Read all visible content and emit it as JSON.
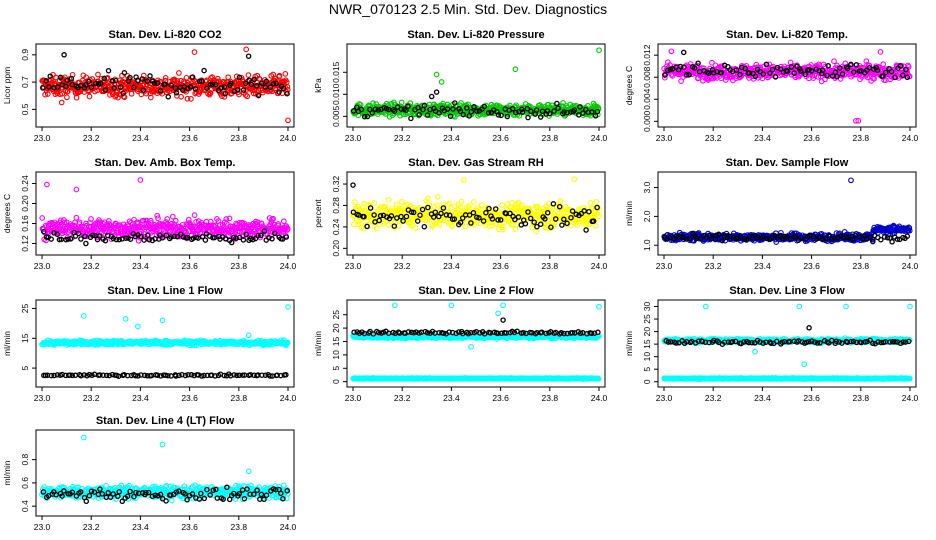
{
  "title": "NWR_070123  2.5 Min. Std. Dev. Diagnostics",
  "chart_data": [
    {
      "type": "scatter",
      "title": "Stan. Dev. Li-820 CO2",
      "xlabel": "",
      "ylabel": "Licor ppm",
      "xlim": [
        23.0,
        24.0
      ],
      "xticks": [
        "23.0",
        "23.2",
        "23.4",
        "23.6",
        "23.8",
        "24.0"
      ],
      "ylim": [
        0.4,
        0.95
      ],
      "yticks": [
        "0.5",
        "0.7",
        "0.9"
      ],
      "ytick_values": [
        0.5,
        0.7,
        0.9
      ],
      "series": [
        {
          "name": "main",
          "color": "#ff0000",
          "mean": 0.67,
          "spread": 0.07,
          "n": 520,
          "outliers": [
            [
              23.83,
              0.94
            ],
            [
              23.62,
              0.92
            ],
            [
              24.0,
              0.42
            ],
            [
              23.08,
              0.55
            ]
          ]
        },
        {
          "name": "reference",
          "color": "#000000",
          "mean": 0.68,
          "spread": 0.08,
          "n": 90,
          "outliers": [
            [
              23.09,
              0.9
            ],
            [
              23.84,
              0.89
            ]
          ]
        }
      ]
    },
    {
      "type": "scatter",
      "title": "Stan. Dev. Li-820 Pressure",
      "xlabel": "",
      "ylabel": "kPa",
      "xlim": [
        23.0,
        24.0
      ],
      "xticks": [
        "23.0",
        "23.2",
        "23.4",
        "23.6",
        "23.8",
        "24.0"
      ],
      "ylim": [
        0.0035,
        0.0205
      ],
      "yticks": [
        "0.005",
        "0.010",
        "0.015"
      ],
      "ytick_values": [
        0.005,
        0.01,
        0.015
      ],
      "series": [
        {
          "name": "main",
          "color": "#00cc00",
          "mean": 0.0065,
          "spread": 0.0013,
          "n": 520,
          "outliers": [
            [
              23.34,
              0.0145
            ],
            [
              23.66,
              0.0157
            ],
            [
              24.0,
              0.02
            ],
            [
              23.36,
              0.0128
            ]
          ]
        },
        {
          "name": "reference",
          "color": "#000000",
          "mean": 0.0062,
          "spread": 0.0012,
          "n": 90,
          "outliers": [
            [
              23.34,
              0.0105
            ],
            [
              23.32,
              0.0095
            ]
          ]
        }
      ]
    },
    {
      "type": "scatter",
      "title": "Stan. Dev. Li-820 Temp.",
      "xlabel": "",
      "ylabel": "degrees C",
      "xlim": [
        23.0,
        24.0
      ],
      "xticks": [
        "23.0",
        "23.2",
        "23.4",
        "23.6",
        "23.8",
        "24.0"
      ],
      "ylim": [
        -0.0003,
        0.0133
      ],
      "yticks": [
        "0.000",
        "0.004",
        "0.008",
        "0.012"
      ],
      "ytick_values": [
        0.0,
        0.004,
        0.008,
        0.012
      ],
      "series": [
        {
          "name": "main",
          "color": "#ff00ff",
          "mean": 0.009,
          "spread": 0.0013,
          "n": 520,
          "outliers": [
            [
              23.78,
              0.0001
            ],
            [
              23.79,
              0.0001
            ],
            [
              23.03,
              0.0127
            ],
            [
              23.88,
              0.0126
            ]
          ]
        },
        {
          "name": "reference",
          "color": "#000000",
          "mean": 0.0092,
          "spread": 0.0013,
          "n": 90,
          "outliers": [
            [
              23.08,
              0.0125
            ]
          ]
        }
      ]
    },
    {
      "type": "scatter",
      "title": "Stan. Dev. Amb. Box Temp.",
      "xlabel": "",
      "ylabel": "degrees C",
      "xlim": [
        23.0,
        24.0
      ],
      "xticks": [
        "23.0",
        "23.2",
        "23.4",
        "23.6",
        "23.8",
        "24.0"
      ],
      "ylim": [
        0.105,
        0.255
      ],
      "yticks": [
        "0.12",
        "0.16",
        "0.20",
        "0.24"
      ],
      "ytick_values": [
        0.12,
        0.16,
        0.2,
        0.24
      ],
      "series": [
        {
          "name": "main",
          "color": "#ff00ff",
          "mean": 0.15,
          "spread": 0.018,
          "n": 520,
          "outliers": [
            [
              23.4,
              0.247
            ],
            [
              23.02,
              0.238
            ],
            [
              23.14,
              0.228
            ]
          ]
        },
        {
          "name": "reference",
          "color": "#000000",
          "mean": 0.132,
          "spread": 0.01,
          "n": 90,
          "outliers": []
        }
      ]
    },
    {
      "type": "scatter",
      "title": "Stan. Dev. Gas Stream RH",
      "xlabel": "",
      "ylabel": "percent",
      "xlim": [
        23.0,
        24.0
      ],
      "xticks": [
        "23.0",
        "23.2",
        "23.4",
        "23.6",
        "23.8",
        "24.0"
      ],
      "ylim": [
        0.195,
        0.335
      ],
      "yticks": [
        "0.20",
        "0.24",
        "0.28",
        "0.32"
      ],
      "ytick_values": [
        0.2,
        0.24,
        0.28,
        0.32
      ],
      "series": [
        {
          "name": "main",
          "color": "#ffff00",
          "mean": 0.262,
          "spread": 0.022,
          "n": 520,
          "outliers": [
            [
              23.45,
              0.328
            ],
            [
              23.9,
              0.329
            ]
          ]
        },
        {
          "name": "reference",
          "color": "#000000",
          "mean": 0.258,
          "spread": 0.02,
          "n": 90,
          "outliers": [
            [
              23.0,
              0.318
            ]
          ]
        }
      ]
    },
    {
      "type": "scatter",
      "title": "Stan. Dev. Sample Flow",
      "xlabel": "",
      "ylabel": "ml/min",
      "xlim": [
        23.0,
        24.0
      ],
      "xticks": [
        "23.0",
        "23.2",
        "23.4",
        "23.6",
        "23.8",
        "24.0"
      ],
      "ylim": [
        0.8,
        3.4
      ],
      "yticks": [
        "1.0",
        "2.0",
        "3.0"
      ],
      "ytick_values": [
        1.0,
        2.0,
        3.0
      ],
      "series": [
        {
          "name": "main",
          "color": "#0000cc",
          "mean": 1.28,
          "spread": 0.12,
          "n": 520,
          "step_after": 23.85,
          "step_mean": 1.55,
          "outliers": [
            [
              23.76,
              3.25
            ]
          ]
        },
        {
          "name": "reference",
          "color": "#000000",
          "mean": 1.25,
          "spread": 0.1,
          "n": 90,
          "outliers": []
        }
      ]
    },
    {
      "type": "scatter",
      "title": "Stan. Dev. Line 1 Flow",
      "xlabel": "",
      "ylabel": "ml/min",
      "xlim": [
        23.0,
        24.0
      ],
      "xticks": [
        "23.0",
        "23.2",
        "23.4",
        "23.6",
        "23.8",
        "24.0"
      ],
      "ylim": [
        0.0,
        26.5
      ],
      "yticks": [
        "5",
        "15",
        "25"
      ],
      "ytick_values": [
        5,
        15,
        25
      ],
      "series": [
        {
          "name": "main",
          "color": "#00ffff",
          "mean": 13.5,
          "spread": 0.7,
          "n": 520,
          "outliers": [
            [
              24.0,
              25.5
            ],
            [
              23.17,
              22.5
            ],
            [
              23.34,
              21.5
            ],
            [
              23.49,
              21.0
            ],
            [
              23.39,
              19.0
            ],
            [
              23.84,
              16.0
            ]
          ]
        },
        {
          "name": "reference",
          "color": "#000000",
          "mean": 2.6,
          "spread": 0.25,
          "n": 90,
          "outliers": []
        }
      ]
    },
    {
      "type": "scatter",
      "title": "Stan. Dev. Line 2 Flow",
      "xlabel": "",
      "ylabel": "ml/min",
      "xlim": [
        23.0,
        24.0
      ],
      "xticks": [
        "23.0",
        "23.2",
        "23.4",
        "23.6",
        "23.8",
        "24.0"
      ],
      "ylim": [
        -0.5,
        29.0
      ],
      "yticks": [
        "0",
        "5",
        "10",
        "15",
        "20",
        "25"
      ],
      "ytick_values": [
        0,
        5,
        10,
        15,
        20,
        25
      ],
      "series": [
        {
          "name": "main",
          "color": "#00ffff",
          "mean": 16.8,
          "spread": 0.6,
          "n": 480,
          "outliers": [
            [
              23.17,
              28.5
            ],
            [
              23.4,
              28.5
            ],
            [
              23.61,
              28.5
            ],
            [
              24.0,
              28.0
            ],
            [
              23.59,
              25.5
            ],
            [
              23.48,
              13.0
            ]
          ]
        },
        {
          "name": "main-low",
          "color": "#00ffff",
          "mean": 1.2,
          "spread": 0.15,
          "n": 480,
          "outliers": []
        },
        {
          "name": "reference",
          "color": "#000000",
          "mean": 18.3,
          "spread": 0.5,
          "n": 90,
          "outliers": [
            [
              23.61,
              23.0
            ]
          ]
        }
      ]
    },
    {
      "type": "scatter",
      "title": "Stan. Dev. Line 3 Flow",
      "xlabel": "",
      "ylabel": "ml/min",
      "xlim": [
        23.0,
        24.0
      ],
      "xticks": [
        "23.0",
        "23.2",
        "23.4",
        "23.6",
        "23.8",
        "24.0"
      ],
      "ylim": [
        -0.5,
        31.0
      ],
      "yticks": [
        "0",
        "5",
        "10",
        "15",
        "20",
        "25",
        "30"
      ],
      "ytick_values": [
        0,
        5,
        10,
        15,
        20,
        25,
        30
      ],
      "series": [
        {
          "name": "main",
          "color": "#00ffff",
          "mean": 16.4,
          "spread": 0.7,
          "n": 480,
          "outliers": [
            [
              23.17,
              30.0
            ],
            [
              23.55,
              30.0
            ],
            [
              23.74,
              30.0
            ],
            [
              24.0,
              30.0
            ],
            [
              23.57,
              7.0
            ],
            [
              23.37,
              12.0
            ]
          ]
        },
        {
          "name": "main-low",
          "color": "#00ffff",
          "mean": 1.3,
          "spread": 0.2,
          "n": 480,
          "outliers": []
        },
        {
          "name": "reference",
          "color": "#000000",
          "mean": 15.8,
          "spread": 0.6,
          "n": 90,
          "outliers": [
            [
              23.59,
              21.5
            ]
          ]
        }
      ]
    },
    {
      "type": "scatter",
      "title": "Stan. Dev. Line 4 (LT) Flow",
      "xlabel": "",
      "ylabel": "ml/min",
      "xlim": [
        23.0,
        24.0
      ],
      "xticks": [
        "23.0",
        "23.2",
        "23.4",
        "23.6",
        "23.8",
        "24.0"
      ],
      "ylim": [
        0.35,
        1.02
      ],
      "yticks": [
        "0.4",
        "0.6",
        "0.8"
      ],
      "ytick_values": [
        0.4,
        0.6,
        0.8
      ],
      "series": [
        {
          "name": "main",
          "color": "#00ffff",
          "mean": 0.52,
          "spread": 0.05,
          "n": 520,
          "outliers": [
            [
              23.17,
              0.99
            ],
            [
              23.49,
              0.93
            ],
            [
              23.84,
              0.7
            ]
          ]
        },
        {
          "name": "reference",
          "color": "#000000",
          "mean": 0.5,
          "spread": 0.05,
          "n": 90,
          "outliers": []
        }
      ]
    }
  ]
}
